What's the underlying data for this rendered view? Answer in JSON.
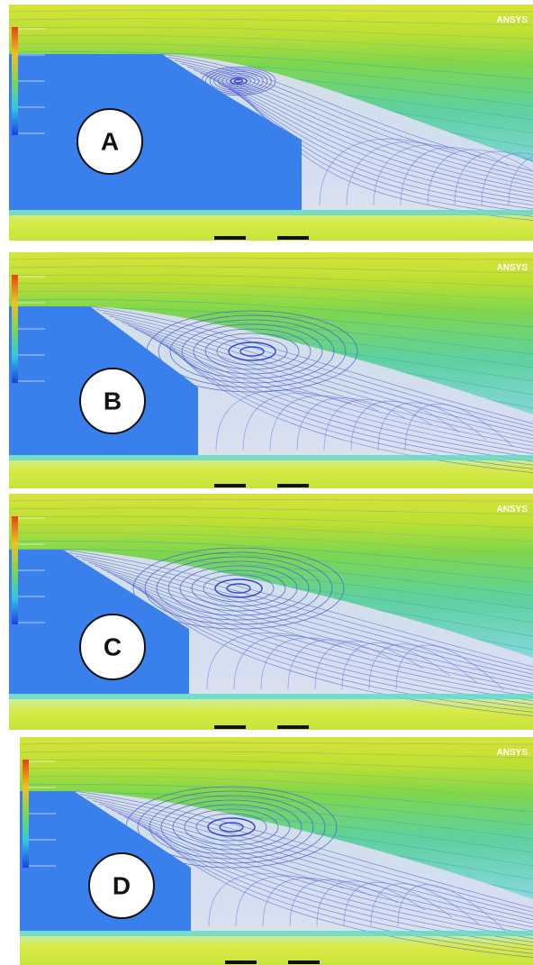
{
  "panels": [
    {
      "label": "A",
      "logo": "ANSYS"
    },
    {
      "label": "B",
      "logo": "ANSYS"
    },
    {
      "label": "C",
      "logo": "ANSYS"
    },
    {
      "label": "D",
      "logo": "ANSYS"
    }
  ]
}
